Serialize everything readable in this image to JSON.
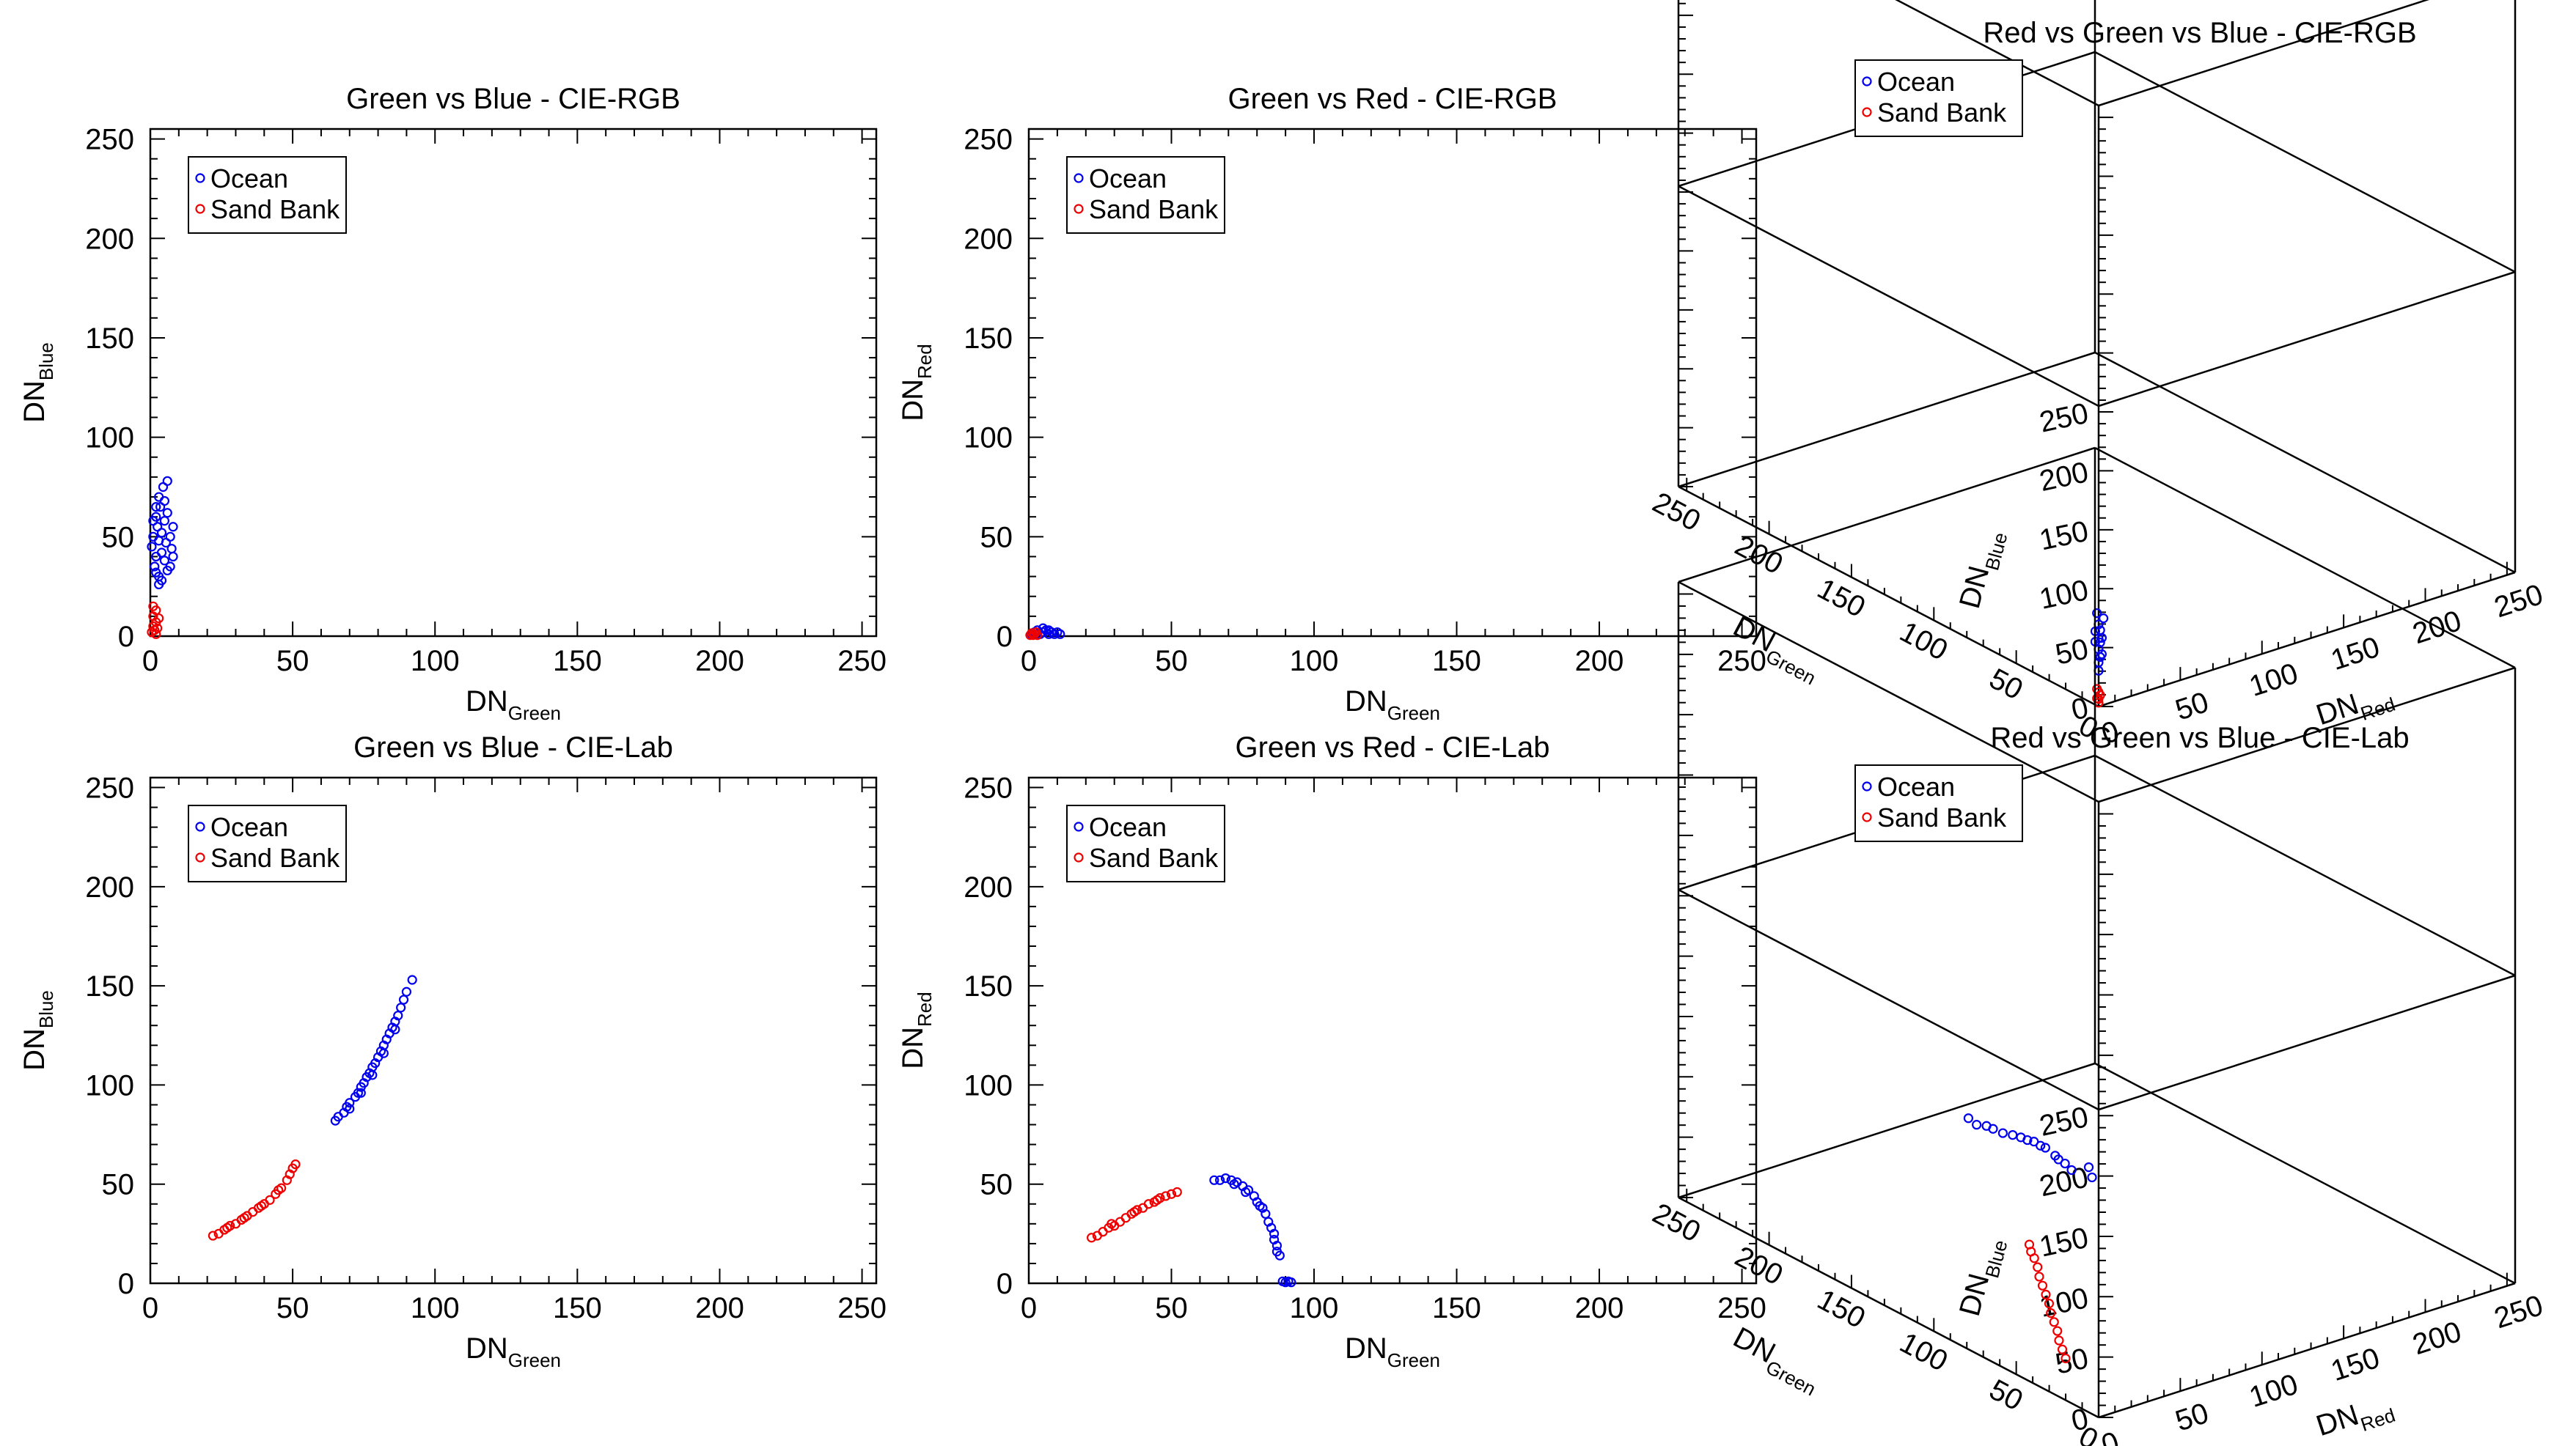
{
  "colors": {
    "ocean": "#0000ee",
    "sand_bank": "#ee0000",
    "axis": "#000000",
    "background": "#ffffff"
  },
  "chart_data": [
    {
      "id": "p1",
      "type": "scatter",
      "title": "Green vs Blue - CIE-RGB",
      "xlabel": "DN",
      "xlabel_sub": "Green",
      "ylabel": "DN",
      "ylabel_sub": "Blue",
      "xlim": [
        0,
        255
      ],
      "ylim": [
        0,
        255
      ],
      "xticks": [
        0,
        50,
        100,
        150,
        200,
        250
      ],
      "yticks": [
        0,
        50,
        100,
        150,
        200,
        250
      ],
      "legend": {
        "position": "top-left",
        "entries": [
          "Ocean",
          "Sand Bank"
        ]
      },
      "series": [
        {
          "name": "Ocean",
          "color": "#0000ee",
          "points": [
            [
              0.5,
              45
            ],
            [
              1,
              50
            ],
            [
              1.5,
              35
            ],
            [
              2,
              60
            ],
            [
              2,
              40
            ],
            [
              2.5,
              55
            ],
            [
              3,
              30
            ],
            [
              3,
              48
            ],
            [
              3.5,
              65
            ],
            [
              4,
              42
            ],
            [
              4,
              52
            ],
            [
              4.5,
              75
            ],
            [
              5,
              58
            ],
            [
              5,
              38
            ],
            [
              5.5,
              47
            ],
            [
              6,
              62
            ],
            [
              6,
              33
            ],
            [
              7,
              50
            ],
            [
              7.5,
              44
            ],
            [
              8,
              55
            ],
            [
              3,
              70
            ],
            [
              4,
              28
            ],
            [
              2,
              32
            ],
            [
              6,
              78
            ],
            [
              5,
              68
            ],
            [
              1,
              58
            ],
            [
              3,
              26
            ],
            [
              8,
              40
            ],
            [
              7,
              35
            ],
            [
              2,
              65
            ]
          ]
        },
        {
          "name": "Sand Bank",
          "color": "#ee0000",
          "points": [
            [
              0.5,
              2
            ],
            [
              1,
              5
            ],
            [
              1,
              10
            ],
            [
              1.5,
              3
            ],
            [
              2,
              7
            ],
            [
              2,
              13
            ],
            [
              2.5,
              4
            ],
            [
              3,
              9
            ],
            [
              1,
              15
            ],
            [
              2,
              1
            ]
          ]
        }
      ]
    },
    {
      "id": "p2",
      "type": "scatter",
      "title": "Green vs Red - CIE-RGB",
      "xlabel": "DN",
      "xlabel_sub": "Green",
      "ylabel": "DN",
      "ylabel_sub": "Red",
      "xlim": [
        0,
        255
      ],
      "ylim": [
        0,
        255
      ],
      "xticks": [
        0,
        50,
        100,
        150,
        200,
        250
      ],
      "yticks": [
        0,
        50,
        100,
        150,
        200,
        250
      ],
      "legend": {
        "position": "top-left",
        "entries": [
          "Ocean",
          "Sand Bank"
        ]
      },
      "series": [
        {
          "name": "Ocean",
          "color": "#0000ee",
          "points": [
            [
              1,
              1
            ],
            [
              2,
              2
            ],
            [
              3,
              3
            ],
            [
              4,
              1
            ],
            [
              5,
              2
            ],
            [
              6,
              3
            ],
            [
              7,
              1
            ],
            [
              8,
              2
            ],
            [
              9,
              1
            ],
            [
              10,
              2
            ],
            [
              11,
              1
            ],
            [
              3,
              1
            ],
            [
              5,
              4
            ],
            [
              7,
              3
            ]
          ]
        },
        {
          "name": "Sand Bank",
          "color": "#ee0000",
          "points": [
            [
              0.5,
              0.5
            ],
            [
              1,
              1.5
            ],
            [
              1.5,
              0.5
            ],
            [
              2,
              1
            ],
            [
              2.5,
              2
            ],
            [
              3,
              0.5
            ]
          ]
        }
      ]
    },
    {
      "id": "p3",
      "type": "scatter",
      "title": "Green vs Blue - CIE-Lab",
      "xlabel": "DN",
      "xlabel_sub": "Green",
      "ylabel": "DN",
      "ylabel_sub": "Blue",
      "xlim": [
        0,
        255
      ],
      "ylim": [
        0,
        255
      ],
      "xticks": [
        0,
        50,
        100,
        150,
        200,
        250
      ],
      "yticks": [
        0,
        50,
        100,
        150,
        200,
        250
      ],
      "legend": {
        "position": "top-left",
        "entries": [
          "Ocean",
          "Sand Bank"
        ]
      },
      "series": [
        {
          "name": "Ocean",
          "color": "#0000ee",
          "points": [
            [
              65,
              82
            ],
            [
              66,
              84
            ],
            [
              68,
              86
            ],
            [
              69,
              89
            ],
            [
              70,
              91
            ],
            [
              72,
              94
            ],
            [
              73,
              96
            ],
            [
              74,
              99
            ],
            [
              75,
              101
            ],
            [
              76,
              104
            ],
            [
              77,
              106
            ],
            [
              78,
              109
            ],
            [
              79,
              111
            ],
            [
              80,
              114
            ],
            [
              81,
              117
            ],
            [
              82,
              120
            ],
            [
              83,
              123
            ],
            [
              84,
              126
            ],
            [
              85,
              129
            ],
            [
              86,
              132
            ],
            [
              87,
              135
            ],
            [
              88,
              139
            ],
            [
              89,
              143
            ],
            [
              90,
              147
            ],
            [
              92,
              153
            ],
            [
              70,
              88
            ],
            [
              74,
              96
            ],
            [
              78,
              105
            ],
            [
              82,
              116
            ],
            [
              86,
              128
            ]
          ]
        },
        {
          "name": "Sand Bank",
          "color": "#ee0000",
          "points": [
            [
              22,
              24
            ],
            [
              24,
              25
            ],
            [
              26,
              27
            ],
            [
              28,
              29
            ],
            [
              30,
              30
            ],
            [
              32,
              32
            ],
            [
              34,
              34
            ],
            [
              36,
              36
            ],
            [
              38,
              38
            ],
            [
              40,
              40
            ],
            [
              42,
              42
            ],
            [
              44,
              45
            ],
            [
              46,
              48
            ],
            [
              48,
              52
            ],
            [
              49,
              55
            ],
            [
              50,
              58
            ],
            [
              51,
              60
            ],
            [
              27,
              28
            ],
            [
              33,
              33
            ],
            [
              39,
              39
            ],
            [
              45,
              47
            ]
          ]
        }
      ]
    },
    {
      "id": "p4",
      "type": "scatter",
      "title": "Green vs Red - CIE-Lab",
      "xlabel": "DN",
      "xlabel_sub": "Green",
      "ylabel": "DN",
      "ylabel_sub": "Red",
      "xlim": [
        0,
        255
      ],
      "ylim": [
        0,
        255
      ],
      "xticks": [
        0,
        50,
        100,
        150,
        200,
        250
      ],
      "yticks": [
        0,
        50,
        100,
        150,
        200,
        250
      ],
      "legend": {
        "position": "top-left",
        "entries": [
          "Ocean",
          "Sand Bank"
        ]
      },
      "series": [
        {
          "name": "Ocean",
          "color": "#0000ee",
          "points": [
            [
              65,
              52
            ],
            [
              67,
              52
            ],
            [
              69,
              53
            ],
            [
              71,
              52
            ],
            [
              73,
              51
            ],
            [
              75,
              49
            ],
            [
              77,
              47
            ],
            [
              79,
              44
            ],
            [
              80,
              41
            ],
            [
              82,
              38
            ],
            [
              83,
              35
            ],
            [
              84,
              31
            ],
            [
              85,
              28
            ],
            [
              86,
              25
            ],
            [
              86,
              22
            ],
            [
              87,
              19
            ],
            [
              87,
              16
            ],
            [
              88,
              14
            ],
            [
              89,
              1
            ],
            [
              90,
              0.5
            ],
            [
              91,
              1
            ],
            [
              92,
              0.5
            ],
            [
              72,
              50
            ],
            [
              76,
              46
            ],
            [
              81,
              39
            ]
          ]
        },
        {
          "name": "Sand Bank",
          "color": "#ee0000",
          "points": [
            [
              22,
              23
            ],
            [
              24,
              24
            ],
            [
              26,
              26
            ],
            [
              28,
              28
            ],
            [
              30,
              29
            ],
            [
              32,
              31
            ],
            [
              34,
              33
            ],
            [
              36,
              35
            ],
            [
              38,
              37
            ],
            [
              40,
              38
            ],
            [
              42,
              40
            ],
            [
              44,
              41
            ],
            [
              46,
              43
            ],
            [
              48,
              44
            ],
            [
              50,
              45
            ],
            [
              52,
              46
            ],
            [
              29,
              30
            ],
            [
              37,
              36
            ],
            [
              45,
              42
            ]
          ]
        }
      ]
    },
    {
      "id": "p5",
      "type": "scatter",
      "title": "Red vs Green vs Blue - CIE-RGB",
      "xlabel": "DN",
      "xlabel_sub": "Red",
      "ylabel": "DN",
      "ylabel_sub": "Green",
      "zlabel": "DN",
      "zlabel_sub": "Blue",
      "xlim": [
        0,
        255
      ],
      "ylim": [
        0,
        255
      ],
      "zlim": [
        0,
        255
      ],
      "xticks": [
        0,
        50,
        100,
        150,
        200,
        250
      ],
      "yticks": [
        0,
        50,
        100,
        150,
        200,
        250
      ],
      "zticks": [
        0,
        50,
        100,
        150,
        200,
        250
      ],
      "legend": {
        "position": "top-left",
        "entries": [
          "Ocean",
          "Sand Bank"
        ]
      },
      "series": [
        {
          "name": "Ocean",
          "color": "#0000ee",
          "points": [
            [
              2,
              2,
              35
            ],
            [
              3,
              3,
              45
            ],
            [
              4,
              2,
              55
            ],
            [
              2,
              4,
              60
            ],
            [
              5,
              3,
              40
            ],
            [
              3,
              5,
              50
            ],
            [
              4,
              4,
              65
            ],
            [
              6,
              3,
              70
            ],
            [
              2,
              2,
              28
            ],
            [
              3,
              4,
              75
            ],
            [
              5,
              5,
              52
            ],
            [
              4,
              3,
              38
            ],
            [
              3,
              2,
              62
            ],
            [
              6,
              5,
              48
            ]
          ]
        },
        {
          "name": "Sand Bank",
          "color": "#ee0000",
          "points": [
            [
              1,
              1,
              2
            ],
            [
              1,
              2,
              5
            ],
            [
              2,
              1,
              8
            ],
            [
              1,
              1,
              11
            ],
            [
              2,
              2,
              4
            ],
            [
              1,
              2,
              13
            ]
          ]
        }
      ]
    },
    {
      "id": "p6",
      "type": "scatter",
      "title": "Red vs Green vs Blue - CIE-Lab",
      "xlabel": "DN",
      "xlabel_sub": "Red",
      "ylabel": "DN",
      "ylabel_sub": "Green",
      "zlabel": "DN",
      "zlabel_sub": "Blue",
      "xlim": [
        0,
        255
      ],
      "ylim": [
        0,
        255
      ],
      "zlim": [
        0,
        255
      ],
      "xticks": [
        0,
        50,
        100,
        150,
        200,
        250
      ],
      "yticks": [
        0,
        50,
        100,
        150,
        200,
        250
      ],
      "zticks": [
        0,
        50,
        100,
        150,
        200,
        250
      ],
      "legend": {
        "position": "top-left",
        "entries": [
          "Ocean",
          "Sand Bank"
        ]
      },
      "series": [
        {
          "name": "Ocean",
          "color": "#0000ee",
          "points": [
            [
              0,
              4,
              196
            ],
            [
              0,
              6,
              203
            ],
            [
              4,
              78,
              185
            ],
            [
              3,
              82,
              188
            ],
            [
              6,
              74,
              186
            ],
            [
              14,
              72,
              178
            ],
            [
              23,
              70,
              172
            ],
            [
              31,
              70,
              165
            ],
            [
              37,
              69,
              158
            ],
            [
              42,
              68,
              150
            ],
            [
              47,
              67,
              142
            ],
            [
              50,
              66,
              136
            ],
            [
              9,
              73,
              183
            ],
            [
              19,
              71,
              175
            ],
            [
              27,
              70,
              168
            ],
            [
              34,
              69,
              161
            ],
            [
              44,
              68,
              146
            ]
          ]
        },
        {
          "name": "Sand Bank",
          "color": "#ee0000",
          "points": [
            [
              4,
              24,
              30
            ],
            [
              4,
              26,
              36
            ],
            [
              4,
              28,
              42
            ],
            [
              5,
              30,
              48
            ],
            [
              5,
              32,
              54
            ],
            [
              5,
              34,
              60
            ],
            [
              6,
              36,
              66
            ],
            [
              6,
              38,
              72
            ],
            [
              6,
              40,
              78
            ],
            [
              6,
              42,
              84
            ],
            [
              7,
              44,
              90
            ],
            [
              7,
              46,
              96
            ],
            [
              7,
              48,
              100
            ],
            [
              8,
              50,
              104
            ]
          ]
        }
      ]
    }
  ]
}
